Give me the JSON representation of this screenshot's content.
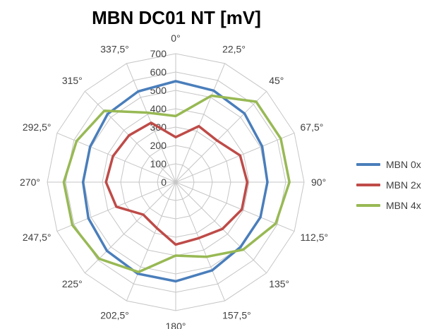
{
  "chart_data": {
    "type": "radar",
    "title": "MBN DC01 NT [mV]",
    "angle_labels": [
      "0°",
      "22,5°",
      "45°",
      "67,5°",
      "90°",
      "112,5°",
      "135°",
      "157,5°",
      "180°",
      "202,5°",
      "225°",
      "247,5°",
      "270°",
      "292,5°",
      "315°",
      "337,5°"
    ],
    "radial_ticks": [
      0,
      100,
      200,
      300,
      400,
      500,
      600,
      700
    ],
    "rlim": [
      0,
      700
    ],
    "grid": true,
    "legend_position": "right",
    "series": [
      {
        "name": "MBN 0x",
        "color": "#4A7EBB",
        "values": [
          550,
          540,
          530,
          510,
          500,
          500,
          500,
          520,
          540,
          540,
          530,
          515,
          505,
          505,
          525,
          535
        ]
      },
      {
        "name": "MBN 2x",
        "color": "#BE4B48",
        "values": [
          245,
          330,
          320,
          380,
          390,
          390,
          360,
          330,
          340,
          270,
          250,
          350,
          380,
          370,
          360,
          350
        ]
      },
      {
        "name": "MBN 4x",
        "color": "#98B954",
        "values": [
          360,
          510,
          620,
          620,
          620,
          590,
          520,
          440,
          400,
          530,
          590,
          610,
          610,
          585,
          550,
          410
        ]
      }
    ]
  }
}
